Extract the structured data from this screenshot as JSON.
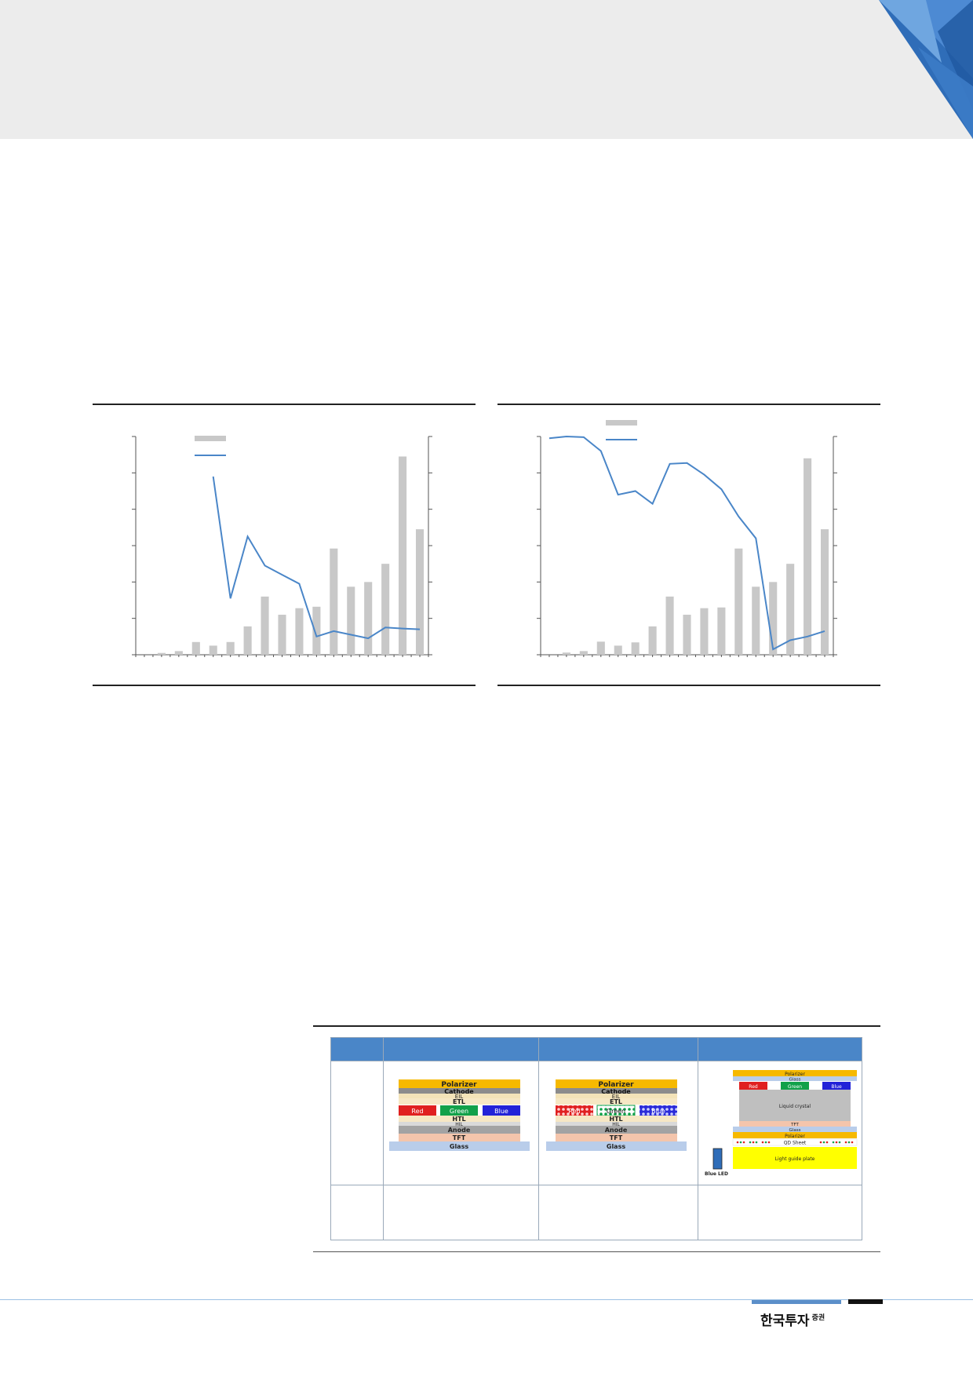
{
  "header": {
    "band_color": "#ececec",
    "accent": "#2f6db8"
  },
  "charts": [
    {
      "chart_data": {
        "type": "bar",
        "bar_values": [
          0,
          0.05,
          0.1,
          0.35,
          0.25,
          0.35,
          0.78,
          1.6,
          1.1,
          1.28,
          1.32,
          2.92,
          1.87,
          2.0,
          2.5,
          5.45,
          3.45
        ],
        "line_values": [
          null,
          null,
          null,
          null,
          4.9,
          1.55,
          3.25,
          2.45,
          2.2,
          1.95,
          0.5,
          0.65,
          0.55,
          0.45,
          0.75,
          0.72,
          0.7
        ],
        "ylim": [
          0,
          6
        ],
        "y2lim": [
          0,
          6
        ],
        "bar_color": "#c8c8c8",
        "line_color": "#4a86c8"
      }
    },
    {
      "chart_data": {
        "type": "bar",
        "bar_values": [
          0,
          0.06,
          0.1,
          0.36,
          0.25,
          0.34,
          0.78,
          1.6,
          1.1,
          1.28,
          1.3,
          2.92,
          1.87,
          2.0,
          2.5,
          5.4,
          3.45
        ],
        "line_values": [
          5.95,
          6.0,
          5.98,
          5.6,
          4.4,
          4.5,
          4.15,
          5.25,
          5.27,
          4.95,
          4.55,
          3.8,
          3.2,
          0.15,
          0.4,
          0.5,
          0.65
        ],
        "ylim": [
          0,
          6
        ],
        "y2lim": [
          0,
          6
        ],
        "bar_color": "#c8c8c8",
        "line_color": "#4a86c8"
      }
    }
  ],
  "comparison": {
    "header_color": "#4a86c8",
    "oled": {
      "layers": [
        "Polarizer",
        "Cathode",
        "EIL",
        "ETL",
        "HTL",
        "HIL",
        "Anode",
        "TFT",
        "Glass"
      ],
      "subpixels": [
        "Red",
        "Green",
        "Blue"
      ]
    },
    "qd_oled": {
      "layers": [
        "Polarizer",
        "Cathode",
        "EIL",
        "ETL",
        "HTL",
        "HIL",
        "Anode",
        "TFT",
        "Glass"
      ],
      "subpixels": [
        "Red",
        "Green",
        "Blue"
      ]
    },
    "qd_lcd": {
      "layers": [
        "Polarizer",
        "Glass",
        "Liquid crystal",
        "TFT",
        "Glass",
        "Polarizer",
        "QD Sheet",
        "Light guide plate"
      ],
      "subpixels": [
        "Red",
        "Green",
        "Blue"
      ],
      "led_label": "Blue LED"
    }
  },
  "footer": {
    "brand": "한국투자",
    "brand_sup": "증권"
  }
}
